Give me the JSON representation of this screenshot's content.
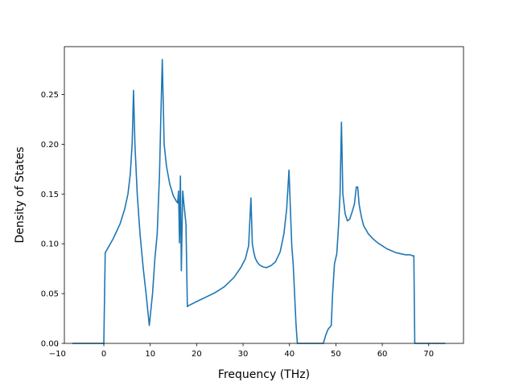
{
  "chart_data": {
    "type": "line",
    "title": "",
    "xlabel": "Frequency (THz)",
    "ylabel": "Density of States",
    "xlim": [
      -8.5,
      77.5
    ],
    "ylim": [
      0.0,
      0.298
    ],
    "x_ticks": [
      -10,
      0,
      10,
      20,
      30,
      40,
      50,
      60,
      70
    ],
    "y_ticks": [
      0.0,
      0.05,
      0.1,
      0.15,
      0.2,
      0.25
    ],
    "x_tick_labels": [
      "−10",
      "0",
      "10",
      "20",
      "30",
      "40",
      "50",
      "60",
      "70"
    ],
    "y_tick_labels": [
      "0.00",
      "0.05",
      "0.10",
      "0.15",
      "0.20",
      "0.25"
    ],
    "grid": false,
    "legend": "none",
    "line_color": "#1f77b4",
    "series": [
      {
        "x": [
          -6.8,
          -0.2,
          0.0,
          0.3,
          2.0,
          3.5,
          4.5,
          5.2,
          5.7,
          6.1,
          6.4,
          6.7,
          7.2,
          7.8,
          8.5,
          9.1,
          9.8,
          10.5,
          11.0,
          11.5,
          12.0,
          12.3,
          12.6,
          13.0,
          13.5,
          14.2,
          15.0,
          15.6,
          15.9,
          16.1,
          16.3,
          16.5,
          16.7,
          17.0,
          17.3,
          17.7,
          18.0,
          18.3,
          20.0,
          24.0,
          26.0,
          28.0,
          29.5,
          30.5,
          31.2,
          31.7,
          32.0,
          32.3,
          32.6,
          33.0,
          33.5,
          34.2,
          35.0,
          36.0,
          37.0,
          38.0,
          38.8,
          39.4,
          39.9,
          40.2,
          40.5,
          40.8,
          41.1,
          41.4,
          41.7,
          42.0,
          47.3,
          47.8,
          48.3,
          49.0,
          49.3,
          49.7,
          50.2,
          50.6,
          50.9,
          51.2,
          51.5,
          52.0,
          52.5,
          53.0,
          53.5,
          54.0,
          54.4,
          54.7,
          55.0,
          55.3,
          55.6,
          56.0,
          57.0,
          58.0,
          59.0,
          60.0,
          61.0,
          62.0,
          63.0,
          64.0,
          65.0,
          66.0,
          66.5,
          66.8,
          67.0,
          67.3,
          73.6
        ],
        "y": [
          0.0,
          0.0,
          0.0,
          0.091,
          0.105,
          0.12,
          0.135,
          0.15,
          0.17,
          0.2,
          0.254,
          0.2,
          0.15,
          0.11,
          0.075,
          0.05,
          0.018,
          0.05,
          0.085,
          0.11,
          0.17,
          0.23,
          0.285,
          0.2,
          0.178,
          0.16,
          0.148,
          0.143,
          0.141,
          0.153,
          0.101,
          0.168,
          0.073,
          0.153,
          0.138,
          0.12,
          0.037,
          0.038,
          0.042,
          0.051,
          0.057,
          0.066,
          0.076,
          0.085,
          0.098,
          0.146,
          0.1,
          0.092,
          0.086,
          0.082,
          0.079,
          0.077,
          0.076,
          0.078,
          0.082,
          0.092,
          0.11,
          0.135,
          0.174,
          0.135,
          0.098,
          0.08,
          0.05,
          0.02,
          0.0,
          0.0,
          0.0,
          0.008,
          0.014,
          0.018,
          0.05,
          0.08,
          0.09,
          0.12,
          0.15,
          0.222,
          0.15,
          0.13,
          0.123,
          0.125,
          0.132,
          0.14,
          0.157,
          0.157,
          0.14,
          0.132,
          0.125,
          0.118,
          0.11,
          0.105,
          0.101,
          0.098,
          0.095,
          0.093,
          0.091,
          0.09,
          0.089,
          0.089,
          0.088,
          0.088,
          0.0,
          0.0,
          0.0
        ]
      }
    ]
  }
}
